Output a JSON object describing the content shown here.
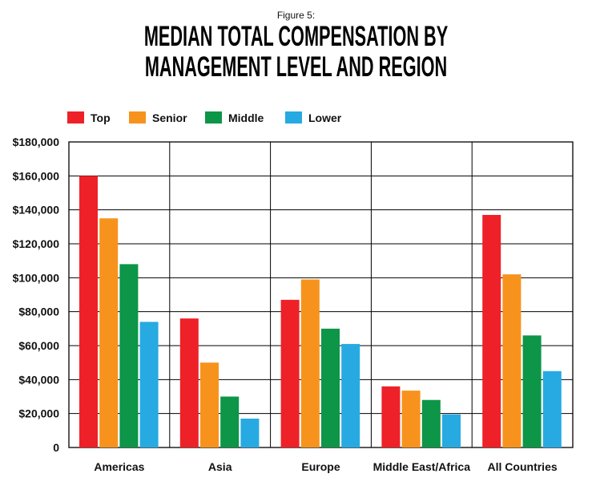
{
  "figure_label": "Figure 5:",
  "title_line1": "MEDIAN TOTAL COMPENSATION BY",
  "title_line2": "MANAGEMENT LEVEL AND REGION",
  "chart_data": {
    "type": "bar",
    "title": "MEDIAN TOTAL COMPENSATION BY MANAGEMENT LEVEL AND REGION",
    "categories": [
      "Americas",
      "Asia",
      "Europe",
      "Middle East/Africa",
      "All Countries"
    ],
    "series": [
      {
        "name": "Top",
        "color": "#ee2128",
        "values": [
          160000,
          76000,
          87000,
          36000,
          137000
        ]
      },
      {
        "name": "Senior",
        "color": "#f7931d",
        "values": [
          135000,
          50000,
          99000,
          33500,
          102000
        ]
      },
      {
        "name": "Middle",
        "color": "#0d9548",
        "values": [
          108000,
          30000,
          70000,
          28000,
          66000
        ]
      },
      {
        "name": "Lower",
        "color": "#27aae1",
        "values": [
          74000,
          17000,
          61000,
          19500,
          45000
        ]
      }
    ],
    "ylim": [
      0,
      180000
    ],
    "yticks": [
      0,
      20000,
      40000,
      60000,
      80000,
      100000,
      120000,
      140000,
      160000,
      180000
    ],
    "ytick_labels": [
      "0",
      "$20,000",
      "$40,000",
      "$60,000",
      "$80,000",
      "$100,000",
      "$120,000",
      "$140,000",
      "$160,000",
      "$180,000"
    ],
    "grid": true,
    "legend": "top-left",
    "xlabel": "",
    "ylabel": ""
  }
}
